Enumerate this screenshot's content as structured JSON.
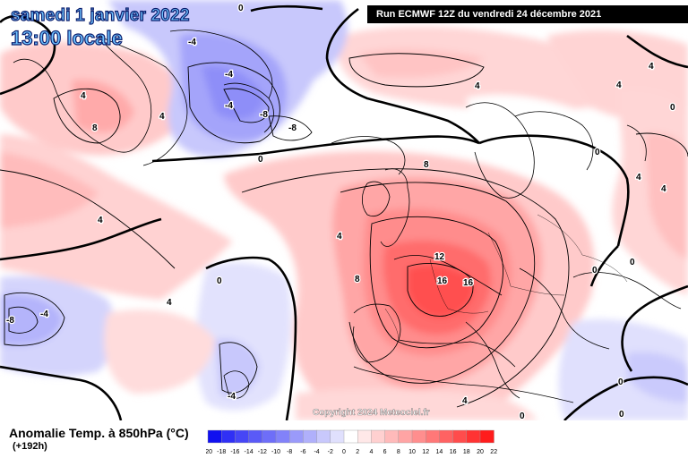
{
  "header": {
    "valid_date": "samedi 1 janvier 2022",
    "local_time": "13:00 locale",
    "run_info": "Run ECMWF 12Z du vendredi 24 décembre 2021"
  },
  "watermark": "Copyright 2024 Meteociel.fr",
  "footer": {
    "variable_label": "Anomalie Temp. à 850hPa (°C)",
    "lead_time": "(+192h)"
  },
  "legend": {
    "unit": "°C",
    "ticks": [
      "-20",
      "-18",
      "-16",
      "-14",
      "-12",
      "-10",
      "-8",
      "-6",
      "-4",
      "-2",
      "0",
      "2",
      "4",
      "6",
      "8",
      "10",
      "12",
      "14",
      "16",
      "18",
      "20",
      "22"
    ],
    "colors": [
      "#1010f0",
      "#3030f5",
      "#4646f6",
      "#5a5af7",
      "#6e6ef8",
      "#8282f9",
      "#9a9afa",
      "#b0b0fb",
      "#c8c8fc",
      "#e0e0fd",
      "#ffffff",
      "#ffe8e8",
      "#ffd0d0",
      "#ffbaba",
      "#ffa4a4",
      "#ff8e8e",
      "#ff7878",
      "#ff6262",
      "#ff4c4c",
      "#ff3333",
      "#ff1c1c"
    ]
  },
  "contour_labels": [
    {
      "text": "0",
      "name": "contour-label-0-greenland-north"
    },
    {
      "text": "-4",
      "name": "contour-label-minus4-baffin"
    },
    {
      "text": "4",
      "name": "contour-label-4-greenland"
    },
    {
      "text": "8",
      "name": "contour-label-8-greenland"
    },
    {
      "text": "4",
      "name": "contour-label-4-greenland-south"
    },
    {
      "text": "-4",
      "name": "contour-label-minus4-arctic-a"
    },
    {
      "text": "-4",
      "name": "contour-label-minus4-arctic-b"
    },
    {
      "text": "-8",
      "name": "contour-label-minus8-arctic-a"
    },
    {
      "text": "-8",
      "name": "contour-label-minus8-arctic-b"
    },
    {
      "text": "0",
      "name": "contour-label-0-atlantic-north"
    },
    {
      "text": "4",
      "name": "contour-label-4-scandinavia-north"
    },
    {
      "text": "4",
      "name": "contour-label-4-barents"
    },
    {
      "text": "4",
      "name": "contour-label-4-scandinavia-west"
    },
    {
      "text": "0",
      "name": "contour-label-0-scandinavia"
    },
    {
      "text": "0",
      "name": "contour-label-0-russia-west"
    },
    {
      "text": "4",
      "name": "contour-label-4-russia"
    },
    {
      "text": "4",
      "name": "contour-label-4-russia-south"
    },
    {
      "text": "8",
      "name": "contour-label-8-north-sea"
    },
    {
      "text": "4",
      "name": "contour-label-4-atlantic-west"
    },
    {
      "text": "4",
      "name": "contour-label-4-ireland"
    },
    {
      "text": "0",
      "name": "contour-label-0-atlantic-mid"
    },
    {
      "text": "8",
      "name": "contour-label-8-biscay"
    },
    {
      "text": "12",
      "name": "contour-label-12-benelux"
    },
    {
      "text": "16",
      "name": "contour-label-16-france"
    },
    {
      "text": "16",
      "name": "contour-label-16-alps"
    },
    {
      "text": "0",
      "name": "contour-label-0-hungary"
    },
    {
      "text": "0",
      "name": "contour-label-0-ukraine"
    },
    {
      "text": "4",
      "name": "contour-label-4-atlantic-southwest"
    },
    {
      "text": "-8",
      "name": "contour-label-minus8-atlantic-west"
    },
    {
      "text": "-4",
      "name": "contour-label-minus4-atlantic-west"
    },
    {
      "text": "-4",
      "name": "contour-label-minus4-atlantic-south"
    },
    {
      "text": "4",
      "name": "contour-label-4-africa"
    },
    {
      "text": "0",
      "name": "contour-label-0-greece"
    },
    {
      "text": "0",
      "name": "contour-label-0-turkey"
    },
    {
      "text": "0",
      "name": "contour-label-0-africa-east"
    }
  ]
}
